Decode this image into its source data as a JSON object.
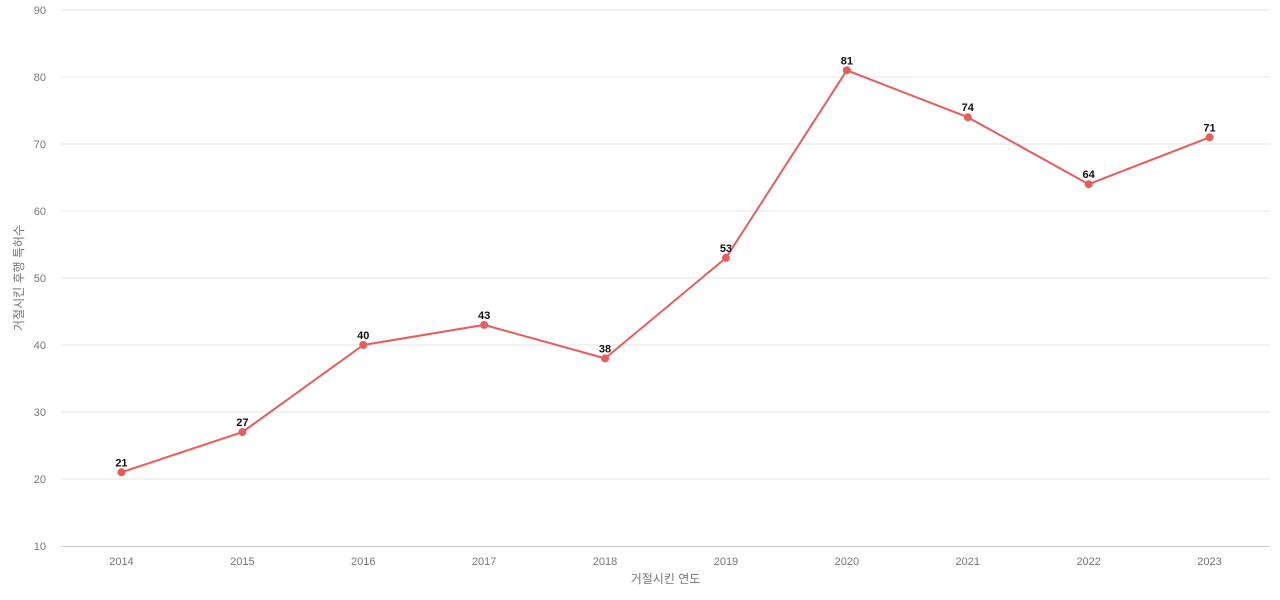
{
  "chart_data": {
    "type": "line",
    "title": "",
    "xlabel": "거절시킨 연도",
    "ylabel": "거절시킨 후행 특허수",
    "categories": [
      "2014",
      "2015",
      "2016",
      "2017",
      "2018",
      "2019",
      "2020",
      "2021",
      "2022",
      "2023"
    ],
    "series": [
      {
        "values": [
          21,
          27,
          40,
          43,
          38,
          53,
          81,
          74,
          64,
          71
        ],
        "color": "#e85c5c"
      }
    ],
    "ylim": [
      10,
      90
    ],
    "yticks": [
      10,
      20,
      30,
      40,
      50,
      60,
      70,
      80,
      90
    ],
    "grid": true,
    "legend": "none",
    "data_labels": true
  }
}
